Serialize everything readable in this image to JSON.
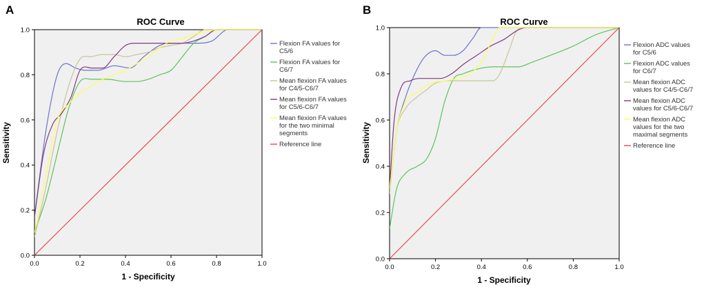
{
  "figure": {
    "panel_labels": [
      "A",
      "B"
    ]
  },
  "chart_data": [
    {
      "type": "line",
      "panel": "A",
      "title": "ROC Curve",
      "xlabel": "1 - Specificity",
      "ylabel": "Sensitivity",
      "xlim": [
        0,
        1
      ],
      "ylim": [
        0,
        1
      ],
      "xticks": [
        "0.0",
        "0.2",
        "0.4",
        "0.6",
        "0.8",
        "1.0"
      ],
      "yticks": [
        "0.0",
        "0.2",
        "0.4",
        "0.6",
        "0.8",
        "1.0"
      ],
      "legend_position": "right",
      "series": [
        {
          "name": "Flexion FA values for C5/6",
          "color": "#6b73c9",
          "x": [
            0,
            0.05,
            0.1,
            0.14,
            0.18,
            0.22,
            0.28,
            0.35,
            0.42,
            0.48,
            0.55,
            0.62,
            0.7,
            0.78,
            0.85,
            0.9,
            1.0
          ],
          "y": [
            0.17,
            0.55,
            0.8,
            0.85,
            0.83,
            0.82,
            0.82,
            0.84,
            0.83,
            0.88,
            0.93,
            0.94,
            0.94,
            0.95,
            1.0,
            1.0,
            1.0
          ]
        },
        {
          "name": "Flexion FA values for C6/7",
          "color": "#5ec25e",
          "x": [
            0,
            0.05,
            0.1,
            0.15,
            0.2,
            0.25,
            0.32,
            0.4,
            0.45,
            0.5,
            0.55,
            0.6,
            0.65,
            0.7,
            0.75,
            0.8,
            0.9,
            1.0
          ],
          "y": [
            0.1,
            0.25,
            0.45,
            0.65,
            0.77,
            0.78,
            0.78,
            0.77,
            0.77,
            0.78,
            0.8,
            0.82,
            0.88,
            0.94,
            0.97,
            1.0,
            1.0,
            1.0
          ]
        },
        {
          "name": "Mean flexion FA values for C4/5-C6/7",
          "color": "#c9c39a",
          "x": [
            0,
            0.05,
            0.1,
            0.15,
            0.2,
            0.25,
            0.3,
            0.35,
            0.4,
            0.45,
            0.5,
            0.55,
            0.6,
            0.65,
            0.7,
            0.75,
            0.8,
            0.9,
            1.0
          ],
          "y": [
            0.08,
            0.3,
            0.55,
            0.75,
            0.87,
            0.88,
            0.89,
            0.89,
            0.88,
            0.89,
            0.9,
            0.92,
            0.93,
            0.94,
            0.97,
            1.0,
            1.0,
            1.0,
            1.0
          ]
        },
        {
          "name": "Mean flexion FA values for C5/6-C6/7",
          "color": "#7d3b80",
          "x": [
            0,
            0.04,
            0.08,
            0.12,
            0.16,
            0.2,
            0.25,
            0.3,
            0.35,
            0.4,
            0.45,
            0.5,
            0.55,
            0.6,
            0.65,
            0.7,
            0.75,
            0.8,
            0.9,
            1.0
          ],
          "y": [
            0.17,
            0.45,
            0.58,
            0.63,
            0.7,
            0.82,
            0.83,
            0.83,
            0.88,
            0.93,
            0.94,
            0.94,
            0.94,
            0.94,
            0.94,
            0.95,
            0.97,
            1.0,
            1.0,
            1.0
          ]
        },
        {
          "name": "Mean flexion FA values for the two minimal segments",
          "color": "#ffff55",
          "x": [
            0,
            0.05,
            0.1,
            0.15,
            0.2,
            0.25,
            0.3,
            0.35,
            0.4,
            0.45,
            0.5,
            0.55,
            0.6,
            0.65,
            0.7,
            0.75,
            0.8,
            0.9,
            1.0
          ],
          "y": [
            0.1,
            0.35,
            0.6,
            0.67,
            0.72,
            0.75,
            0.78,
            0.8,
            0.82,
            0.85,
            0.88,
            0.92,
            0.95,
            0.96,
            0.98,
            0.99,
            1.0,
            1.0,
            1.0
          ]
        },
        {
          "name": "Reference line",
          "color": "#e84a4a",
          "x": [
            0,
            1
          ],
          "y": [
            0,
            1
          ]
        }
      ]
    },
    {
      "type": "line",
      "panel": "B",
      "title": "ROC Curve",
      "xlabel": "1 - Specificity",
      "ylabel": "Sensitivity",
      "xlim": [
        0,
        1
      ],
      "ylim": [
        0,
        1
      ],
      "xticks": [
        "0.0",
        "0.2",
        "0.4",
        "0.6",
        "0.8",
        "1.0"
      ],
      "yticks": [
        "0.0",
        "0.2",
        "0.4",
        "0.6",
        "0.8",
        "1.0"
      ],
      "legend_position": "right",
      "series": [
        {
          "name": "Flexion ADC values for C5/6",
          "color": "#6b73c9",
          "x": [
            0,
            0.03,
            0.07,
            0.11,
            0.15,
            0.2,
            0.24,
            0.28,
            0.32,
            0.36,
            0.4,
            0.45,
            0.5,
            0.6,
            0.8,
            1.0
          ],
          "y": [
            0.3,
            0.55,
            0.7,
            0.8,
            0.87,
            0.9,
            0.88,
            0.88,
            0.9,
            0.95,
            1.0,
            1.0,
            1.0,
            1.0,
            1.0,
            1.0
          ]
        },
        {
          "name": "Flexion ADC values for C6/7",
          "color": "#5ec25e",
          "x": [
            0,
            0.03,
            0.07,
            0.12,
            0.16,
            0.2,
            0.24,
            0.28,
            0.32,
            0.38,
            0.45,
            0.5,
            0.56,
            0.62,
            0.7,
            0.8,
            0.9,
            1.0
          ],
          "y": [
            0.13,
            0.3,
            0.37,
            0.4,
            0.43,
            0.52,
            0.68,
            0.78,
            0.8,
            0.82,
            0.83,
            0.83,
            0.83,
            0.85,
            0.88,
            0.92,
            0.97,
            1.0
          ]
        },
        {
          "name": "Mean flexion ADC values for C4/5-C6/7",
          "color": "#c9c39a",
          "x": [
            0,
            0.03,
            0.07,
            0.12,
            0.16,
            0.2,
            0.3,
            0.35,
            0.4,
            0.45,
            0.48,
            0.52,
            0.55,
            0.58,
            0.7,
            0.85,
            1.0
          ],
          "y": [
            0.28,
            0.55,
            0.65,
            0.7,
            0.73,
            0.76,
            0.77,
            0.77,
            0.77,
            0.77,
            0.8,
            0.9,
            0.98,
            1.0,
            1.0,
            1.0,
            1.0
          ]
        },
        {
          "name": "Mean flexion ADC values for C5/6-C6/7",
          "color": "#7d3b80",
          "x": [
            0,
            0.02,
            0.05,
            0.09,
            0.13,
            0.18,
            0.22,
            0.27,
            0.32,
            0.38,
            0.44,
            0.5,
            0.56,
            0.6,
            0.7,
            0.85,
            1.0
          ],
          "y": [
            0.3,
            0.6,
            0.74,
            0.77,
            0.78,
            0.78,
            0.78,
            0.8,
            0.84,
            0.88,
            0.92,
            0.95,
            0.99,
            1.0,
            1.0,
            1.0,
            1.0
          ]
        },
        {
          "name": "Mean flexion ADC values for the two maximal segments",
          "color": "#ffff55",
          "x": [
            0,
            0.03,
            0.07,
            0.12,
            0.18,
            0.24,
            0.3,
            0.35,
            0.4,
            0.44,
            0.48,
            0.55,
            0.7,
            0.85,
            1.0
          ],
          "y": [
            0.3,
            0.55,
            0.68,
            0.72,
            0.76,
            0.77,
            0.78,
            0.8,
            0.85,
            0.93,
            1.0,
            1.0,
            1.0,
            1.0,
            1.0
          ]
        },
        {
          "name": "Reference line",
          "color": "#e84a4a",
          "x": [
            0,
            1
          ],
          "y": [
            0,
            1
          ]
        }
      ]
    }
  ]
}
